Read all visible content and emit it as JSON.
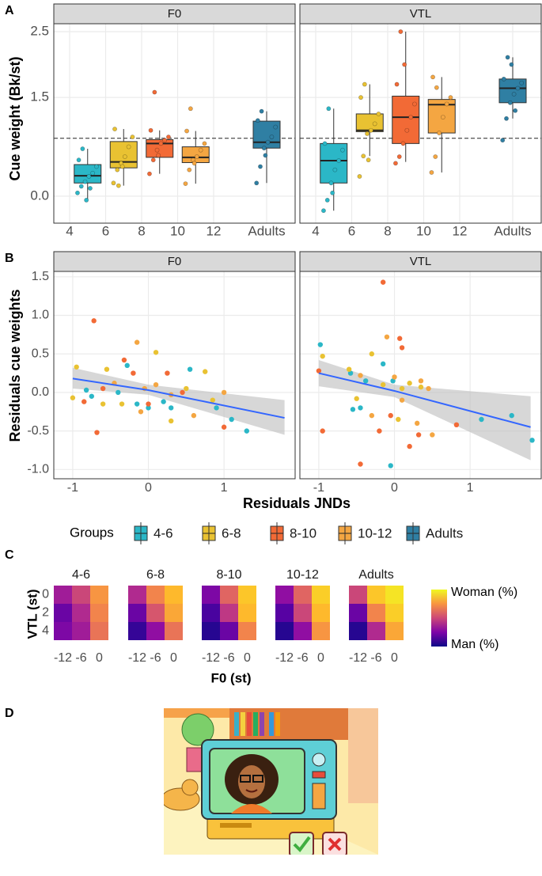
{
  "panel_labels": [
    "A",
    "B",
    "C",
    "D"
  ],
  "axis_titles": {
    "a_y": "Cue weight (Bk/st)",
    "b_y": "Residuals cue weights",
    "b_x": "Residuals JNDs",
    "c_y": "VTL (st)",
    "c_x": "F0 (st)"
  },
  "legend": {
    "title": "Groups",
    "entries": [
      {
        "name": "4-6",
        "color": "#2bb7c7"
      },
      {
        "name": "6-8",
        "color": "#e9c232"
      },
      {
        "name": "8-10",
        "color": "#f26a36"
      },
      {
        "name": "10-12",
        "color": "#f4a642"
      },
      {
        "name": "Adults",
        "color": "#2f7fa3"
      }
    ]
  },
  "colorbar": {
    "zlim": [
      0,
      100
    ],
    "high_label": "Woman (%)",
    "low_label": "Man (%)"
  },
  "chart_data": [
    {
      "type": "box",
      "title": "F0",
      "x_labels": [
        "4",
        "6",
        "8",
        "10",
        "12",
        "Adults"
      ],
      "ylim": [
        -0.41,
        2.62
      ],
      "yticks": [
        {
          "value": 0,
          "label": "0.0"
        },
        1.5,
        {
          "value": 2.5,
          "label": "2.5"
        }
      ],
      "reference_line": 0.88,
      "boxes": [
        {
          "min": -0.06,
          "q1": 0.2,
          "median": 0.31,
          "q3": 0.48,
          "max": 0.72,
          "points": [
            0.05,
            0.15,
            0.22,
            0.3,
            0.35,
            0.45,
            0.55,
            0.72,
            -0.06,
            0.12
          ]
        },
        {
          "min": 0.16,
          "q1": 0.43,
          "median": 0.52,
          "q3": 0.83,
          "max": 1.02,
          "points": [
            0.2,
            0.4,
            0.5,
            0.6,
            0.75,
            0.9,
            1.02,
            0.16,
            0.45
          ]
        },
        {
          "min": 0.34,
          "q1": 0.59,
          "median": 0.8,
          "q3": 0.86,
          "max": 1.0,
          "points": [
            0.34,
            0.55,
            0.7,
            0.8,
            0.85,
            0.9,
            1.0,
            1.58,
            0.62
          ]
        },
        {
          "min": 0.19,
          "q1": 0.51,
          "median": 0.59,
          "q3": 0.75,
          "max": 0.99,
          "points": [
            0.19,
            0.4,
            0.55,
            0.6,
            0.7,
            0.8,
            0.99,
            1.33,
            0.5
          ]
        },
        {
          "min": 0.2,
          "q1": 0.73,
          "median": 0.82,
          "q3": 1.14,
          "max": 1.29,
          "points": [
            0.2,
            0.45,
            0.73,
            0.82,
            0.9,
            1.05,
            1.15,
            1.29,
            0.62
          ]
        }
      ]
    },
    {
      "type": "box",
      "title": "VTL",
      "x_labels": [
        "4",
        "6",
        "8",
        "10",
        "12",
        "Adults"
      ],
      "ylim": [
        -0.41,
        2.62
      ],
      "yticks": [
        {
          "value": 0,
          "label": "0.0"
        },
        1.5,
        {
          "value": 2.5,
          "label": "2.5"
        }
      ],
      "reference_line": 0.88,
      "boxes": [
        {
          "min": -0.22,
          "q1": 0.2,
          "median": 0.54,
          "q3": 0.8,
          "max": 1.33,
          "points": [
            -0.22,
            -0.06,
            0.2,
            0.4,
            0.54,
            0.7,
            0.8,
            1.33,
            0.05
          ]
        },
        {
          "min": 0.61,
          "q1": 0.98,
          "median": 1.0,
          "q3": 1.25,
          "max": 1.7,
          "points": [
            0.3,
            0.61,
            0.95,
            1.0,
            1.1,
            1.25,
            1.5,
            1.7,
            0.55
          ]
        },
        {
          "min": 0.52,
          "q1": 0.8,
          "median": 1.2,
          "q3": 1.52,
          "max": 2.5,
          "points": [
            0.5,
            0.6,
            0.8,
            1.0,
            1.2,
            1.4,
            1.7,
            2.5,
            2.0
          ]
        },
        {
          "min": 0.36,
          "q1": 0.96,
          "median": 1.39,
          "q3": 1.47,
          "max": 1.81,
          "points": [
            0.36,
            0.6,
            0.96,
            1.2,
            1.4,
            1.5,
            1.81,
            1.65
          ]
        },
        {
          "min": 1.18,
          "q1": 1.42,
          "median": 1.64,
          "q3": 1.78,
          "max": 2.11,
          "points": [
            0.85,
            1.18,
            1.42,
            1.55,
            1.64,
            1.72,
            1.78,
            2.11,
            2.0,
            1.3
          ]
        }
      ]
    },
    {
      "type": "scatter",
      "title": "F0",
      "xlim": [
        -1.25,
        1.94
      ],
      "xticks": [
        -1,
        0,
        1
      ],
      "ylim": [
        -1.12,
        1.57
      ],
      "yticks": [
        {
          "value": -1,
          "label": "-1.0"
        },
        -0.5,
        {
          "value": 0,
          "label": "0.0"
        },
        0.5,
        {
          "value": 1,
          "label": "1.0"
        },
        1.5
      ],
      "series": [
        {
          "name": "4-6",
          "x": [
            -0.82,
            -0.75,
            -0.28,
            -0.15,
            0,
            0.3,
            0.55,
            0.9,
            1.1,
            1.3,
            -0.4,
            0.2
          ],
          "y": [
            0.03,
            -0.05,
            0.35,
            -0.15,
            -0.2,
            -0.2,
            0.3,
            -0.2,
            -0.35,
            -0.5,
            0.0,
            -0.12
          ]
        },
        {
          "name": "6-8",
          "x": [
            -1.0,
            -0.95,
            -0.55,
            -0.35,
            0.1,
            0.3,
            0.75,
            0.85,
            0.5,
            -0.6
          ],
          "y": [
            -0.07,
            0.33,
            0.3,
            -0.15,
            0.52,
            -0.37,
            0.27,
            -0.1,
            0.05,
            -0.15
          ]
        },
        {
          "name": "8-10",
          "x": [
            -0.72,
            -0.68,
            -0.6,
            -0.32,
            -0.2,
            0.0,
            0.25,
            0.45,
            1.0,
            -0.85
          ],
          "y": [
            0.93,
            -0.52,
            0.05,
            0.42,
            0.25,
            -0.15,
            0.25,
            0.0,
            -0.45,
            -0.12
          ]
        },
        {
          "name": "10-12",
          "x": [
            -0.15,
            -0.45,
            -0.1,
            0.1,
            0.3,
            0.6,
            1.0,
            -0.05
          ],
          "y": [
            0.65,
            0.12,
            -0.25,
            0.1,
            -0.03,
            -0.3,
            0.0,
            0.05
          ]
        }
      ],
      "fit": {
        "color": "#3366ff",
        "x": [
          -1,
          0,
          1.8
        ],
        "y": [
          0.18,
          0.03,
          -0.33
        ],
        "lower": [
          0.05,
          -0.03,
          -0.55
        ],
        "upper": [
          0.32,
          0.1,
          -0.1
        ]
      }
    },
    {
      "type": "scatter",
      "title": "VTL",
      "xlim": [
        -1.25,
        1.94
      ],
      "xticks": [
        -1,
        0,
        1
      ],
      "ylim": [
        -1.12,
        1.57
      ],
      "yticks": [
        {
          "value": -1,
          "label": "-1.0"
        },
        -0.5,
        {
          "value": 0,
          "label": "0.0"
        },
        0.5,
        {
          "value": 1,
          "label": "1.0"
        },
        1.5
      ],
      "series": [
        {
          "name": "4-6",
          "x": [
            -0.98,
            -0.58,
            -0.55,
            -0.45,
            -0.38,
            -0.05,
            -0.15,
            1.15,
            1.55,
            1.82,
            -0.02
          ],
          "y": [
            0.62,
            0.25,
            -0.22,
            -0.2,
            0.15,
            -0.95,
            0.37,
            -0.35,
            -0.3,
            -0.62,
            0.15
          ]
        },
        {
          "name": "6-8",
          "x": [
            -0.95,
            -0.6,
            -0.3,
            -0.15,
            0.1,
            0.35,
            0.2,
            -0.5,
            0.05
          ],
          "y": [
            0.47,
            0.3,
            0.5,
            0.1,
            0.05,
            0.07,
            0.12,
            -0.08,
            -0.35
          ]
        },
        {
          "name": "8-10",
          "x": [
            -1.0,
            -0.95,
            -0.15,
            -0.2,
            0.07,
            0.1,
            0.2,
            -0.05,
            0.32,
            0.82,
            -0.45
          ],
          "y": [
            0.28,
            -0.5,
            1.43,
            -0.5,
            0.7,
            0.58,
            -0.7,
            -0.3,
            -0.55,
            -0.42,
            -0.93
          ]
        },
        {
          "name": "10-12",
          "x": [
            -0.1,
            -0.3,
            0.0,
            0.35,
            0.45,
            0.1,
            0.3,
            0.5,
            -0.45
          ],
          "y": [
            0.72,
            -0.3,
            0.2,
            0.15,
            0.05,
            -0.1,
            -0.4,
            -0.55,
            0.22
          ]
        }
      ],
      "fit": {
        "color": "#3366ff",
        "x": [
          -1,
          0,
          1.8
        ],
        "y": [
          0.25,
          0.02,
          -0.45
        ],
        "lower": [
          0.08,
          -0.06,
          -0.88
        ],
        "upper": [
          0.42,
          0.1,
          -0.05
        ]
      }
    },
    {
      "type": "heatmap",
      "title": "4-6",
      "x": [
        -12,
        -6,
        0
      ],
      "y": [
        0,
        2,
        4
      ],
      "values": [
        [
          35,
          50,
          75
        ],
        [
          20,
          40,
          70
        ],
        [
          25,
          35,
          65
        ]
      ]
    },
    {
      "type": "heatmap",
      "title": "6-8",
      "x": [
        -12,
        -6,
        0
      ],
      "values": [
        [
          40,
          70,
          85
        ],
        [
          20,
          55,
          80
        ],
        [
          8,
          30,
          65
        ]
      ]
    },
    {
      "type": "heatmap",
      "title": "8-10",
      "x": [
        -12,
        -6,
        0
      ],
      "values": [
        [
          25,
          60,
          88
        ],
        [
          12,
          45,
          85
        ],
        [
          5,
          20,
          70
        ]
      ]
    },
    {
      "type": "heatmap",
      "title": "10-12",
      "x": [
        -12,
        -6,
        0
      ],
      "values": [
        [
          30,
          60,
          90
        ],
        [
          15,
          50,
          85
        ],
        [
          5,
          30,
          75
        ]
      ]
    },
    {
      "type": "heatmap",
      "title": "Adults",
      "x": [
        -12,
        -6,
        0
      ],
      "values": [
        [
          50,
          88,
          95
        ],
        [
          20,
          70,
          90
        ],
        [
          5,
          40,
          80
        ]
      ]
    }
  ]
}
